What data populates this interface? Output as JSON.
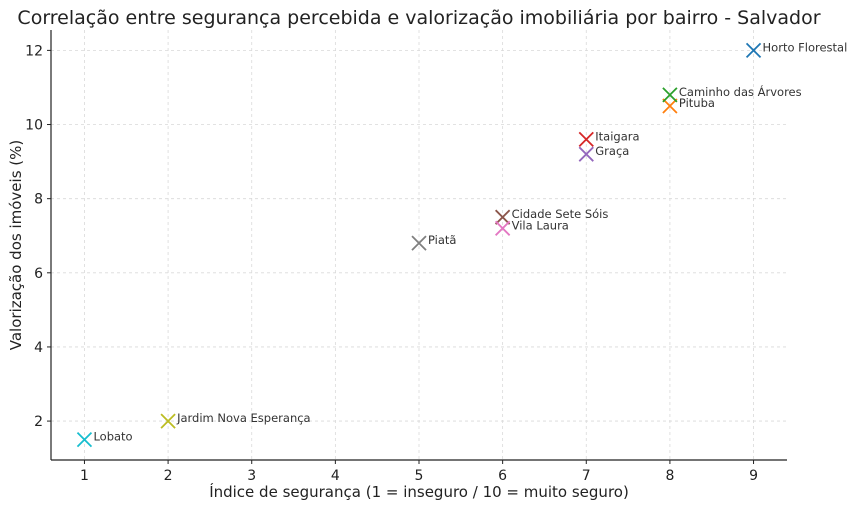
{
  "chart_data": {
    "type": "scatter",
    "title": "Correlação entre segurança percebida e valorização imobiliária por bairro - Salvador",
    "xlabel": "Índice de segurança (1 = inseguro / 10 = muito seguro)",
    "ylabel": "Valorização dos imóveis (%)",
    "xlim": [
      0.6,
      9.4
    ],
    "ylim": [
      0.95,
      12.55
    ],
    "xticks": [
      1,
      2,
      3,
      4,
      5,
      6,
      7,
      8,
      9
    ],
    "yticks": [
      2,
      4,
      6,
      8,
      10,
      12
    ],
    "grid": true,
    "marker": "x",
    "points": [
      {
        "label": "Horto Florestal",
        "x": 9,
        "y": 12,
        "color": "#1f77b4"
      },
      {
        "label": "Pituba",
        "x": 8,
        "y": 10.5,
        "color": "#ff7f0e"
      },
      {
        "label": "Caminho das Árvores",
        "x": 8,
        "y": 10.8,
        "color": "#2ca02c"
      },
      {
        "label": "Itaigara",
        "x": 7,
        "y": 9.6,
        "color": "#d62728"
      },
      {
        "label": "Graça",
        "x": 7,
        "y": 9.2,
        "color": "#9467bd"
      },
      {
        "label": "Cidade Sete Sóis",
        "x": 6,
        "y": 7.5,
        "color": "#8c564b"
      },
      {
        "label": "Vila Laura",
        "x": 6,
        "y": 7.2,
        "color": "#e377c2"
      },
      {
        "label": "Piatã",
        "x": 5,
        "y": 6.8,
        "color": "#7f7f7f"
      },
      {
        "label": "Jardim Nova Esperança",
        "x": 2,
        "y": 2,
        "color": "#bcbd22"
      },
      {
        "label": "Lobato",
        "x": 1,
        "y": 1.5,
        "color": "#17becf"
      }
    ]
  }
}
